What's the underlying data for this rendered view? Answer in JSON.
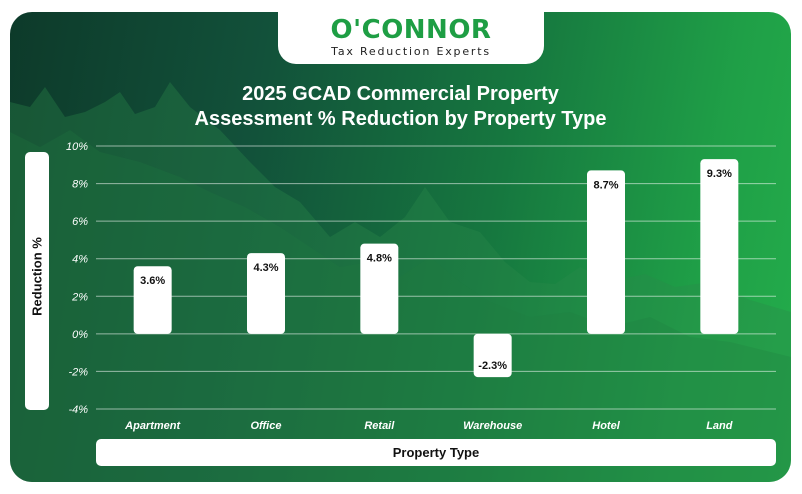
{
  "brand": {
    "name": "O'CONNOR",
    "tagline": "Tax Reduction Experts"
  },
  "chart_data": {
    "type": "bar",
    "title": "2025 GCAD Commercial Property Assessment % Reduction by Property Type",
    "title_lines": [
      "2025 GCAD Commercial Property",
      "Assessment % Reduction by Property Type"
    ],
    "xlabel": "Property Type",
    "ylabel": "Reduction %",
    "categories": [
      "Apartment",
      "Office",
      "Retail",
      "Warehouse",
      "Hotel",
      "Land"
    ],
    "values": [
      3.6,
      4.3,
      4.8,
      -2.3,
      8.7,
      9.3
    ],
    "data_labels": [
      "3.6%",
      "4.3%",
      "4.8%",
      "-2.3%",
      "8.7%",
      "9.3%"
    ],
    "ylim": [
      -4,
      10
    ],
    "yticks": [
      10,
      8,
      6,
      4,
      2,
      0,
      -2,
      -4
    ],
    "ytick_labels": [
      "10%",
      "8%",
      "6%",
      "4%",
      "2%",
      "0%",
      "-2%",
      "-4%"
    ],
    "grid": true,
    "bar_color": "#ffffff",
    "label_color": "#111111"
  }
}
